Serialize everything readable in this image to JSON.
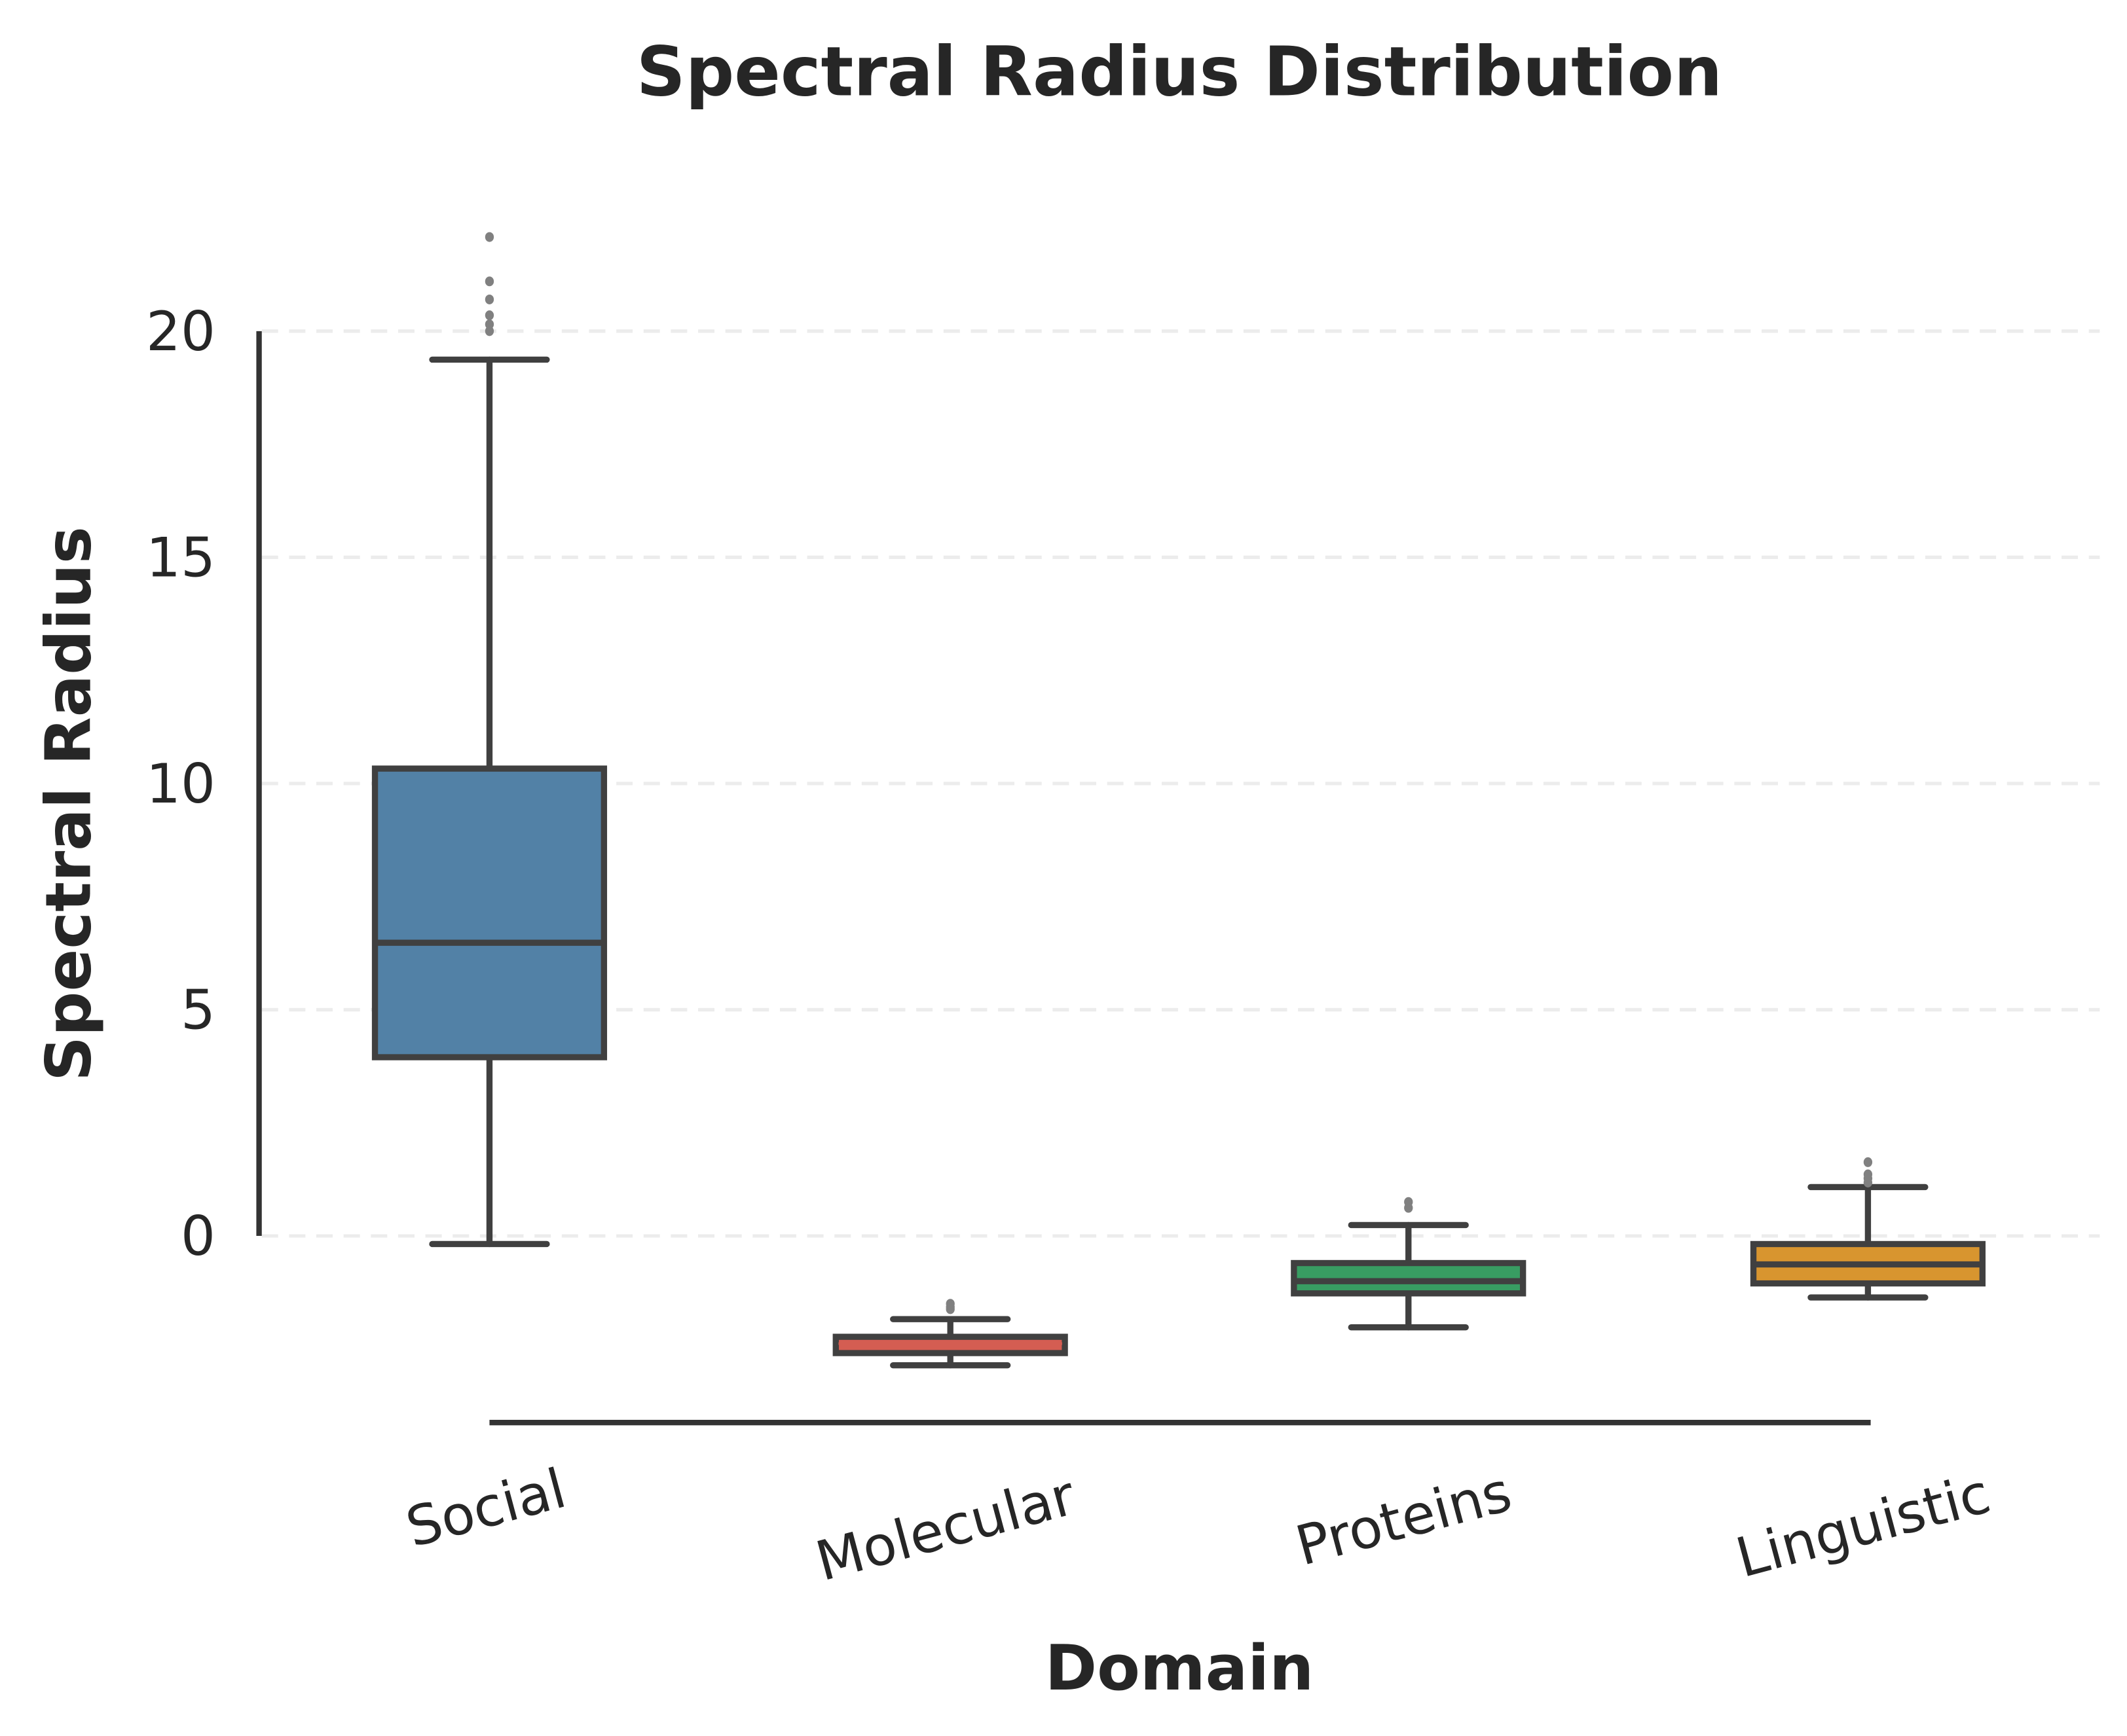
{
  "chart_data": {
    "type": "box",
    "title": "Spectral Radius Distribution",
    "xlabel": "Domain",
    "ylabel": "Spectral Radius",
    "ylim": [
      -4.1,
      22.5
    ],
    "yticks": [
      0,
      5,
      10,
      15,
      20
    ],
    "ytick_labels": [
      "0",
      "5",
      "10",
      "15",
      "20"
    ],
    "grid": {
      "axis": "y",
      "style": "dashed",
      "color": "#ececec"
    },
    "categories": [
      "Social",
      "Molecular",
      "Proteins",
      "Linguistic"
    ],
    "category_label_rotation": -15,
    "series": [
      {
        "name": "Social",
        "color": "#5281a6",
        "whisker_low": -0.18,
        "q1": 3.95,
        "median": 6.48,
        "q3": 10.33,
        "whisker_high": 19.37,
        "outliers": [
          20.0,
          20.15,
          20.35,
          20.7,
          21.1,
          22.08
        ]
      },
      {
        "name": "Molecular",
        "color": "#d45d52",
        "whisker_low": -2.86,
        "q1": -2.59,
        "median": -2.38,
        "q3": -2.23,
        "whisker_high": -1.84,
        "outliers": [
          -1.5,
          -1.57,
          -1.62
        ]
      },
      {
        "name": "Proteins",
        "color": "#389d62",
        "whisker_low": -2.02,
        "q1": -1.27,
        "median": -1.0,
        "q3": -0.6,
        "whisker_high": 0.24,
        "outliers": [
          0.62,
          0.75
        ]
      },
      {
        "name": "Linguistic",
        "color": "#d8952f",
        "whisker_low": -1.36,
        "q1": -1.05,
        "median": -0.63,
        "q3": -0.18,
        "whisker_high": 1.08,
        "outliers": [
          1.18,
          1.27,
          1.36,
          1.63
        ]
      }
    ]
  }
}
